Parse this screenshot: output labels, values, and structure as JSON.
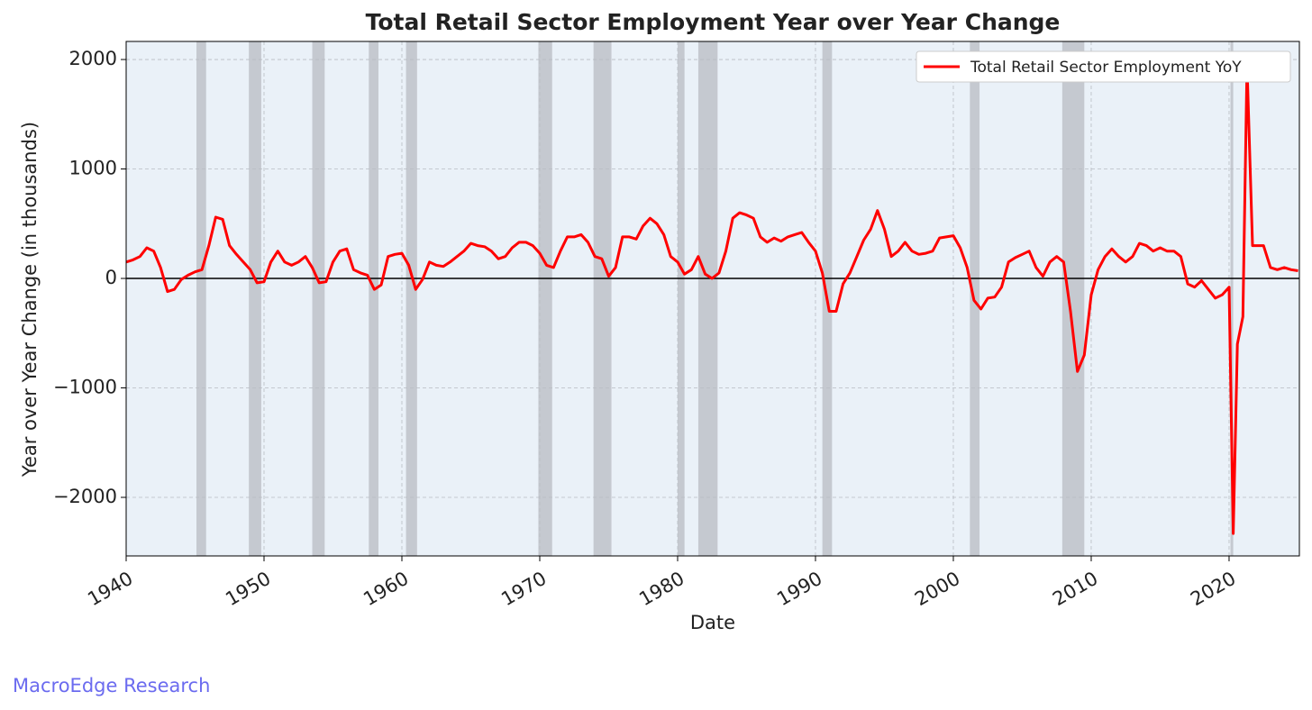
{
  "chart_data": {
    "type": "line",
    "title": "Total Retail Sector Employment Year over Year Change",
    "xlabel": "Date",
    "ylabel": "Year over Year Change (in thousands)",
    "source": "MacroEdge Research",
    "grid": true,
    "legend": "upper right",
    "xlim": [
      1940,
      2025.1
    ],
    "ylim": [
      -2535,
      2165
    ],
    "xticks": [
      1940,
      1950,
      1960,
      1970,
      1980,
      1990,
      2000,
      2010,
      2020
    ],
    "yticks": [
      {
        "value": -2000,
        "label": "−2000"
      },
      {
        "value": -1000,
        "label": "−1000"
      },
      0,
      1000,
      2000
    ],
    "shaded_regions": [
      [
        1945.1,
        1945.8
      ],
      [
        1948.9,
        1949.8
      ],
      [
        1953.5,
        1954.4
      ],
      [
        1957.6,
        1958.3
      ],
      [
        1960.3,
        1961.1
      ],
      [
        1969.9,
        1970.9
      ],
      [
        1973.9,
        1975.2
      ],
      [
        1980.0,
        1980.5
      ],
      [
        1981.5,
        1982.9
      ],
      [
        1990.5,
        1991.2
      ],
      [
        2001.2,
        2001.9
      ],
      [
        2007.9,
        2009.5
      ],
      [
        2020.1,
        2020.3
      ]
    ],
    "shade_color": "#b0b4ba",
    "series": [
      {
        "name": "Total Retail Sector Employment YoY",
        "color": "#ff0000",
        "x": [
          1940,
          1940.5,
          1941,
          1941.5,
          1942,
          1942.5,
          1943,
          1943.5,
          1944,
          1944.5,
          1945,
          1945.5,
          1946,
          1946.5,
          1947,
          1947.5,
          1948,
          1948.5,
          1949,
          1949.5,
          1950,
          1950.5,
          1951,
          1951.5,
          1952,
          1952.5,
          1953,
          1953.5,
          1954,
          1954.5,
          1955,
          1955.5,
          1956,
          1956.5,
          1957,
          1957.5,
          1958,
          1958.5,
          1959,
          1959.5,
          1960,
          1960.5,
          1961,
          1961.5,
          1962,
          1962.5,
          1963,
          1963.5,
          1964,
          1964.5,
          1965,
          1965.5,
          1966,
          1966.5,
          1967,
          1967.5,
          1968,
          1968.5,
          1969,
          1969.5,
          1970,
          1970.5,
          1971,
          1971.5,
          1972,
          1972.5,
          1973,
          1973.5,
          1974,
          1974.5,
          1975,
          1975.5,
          1976,
          1976.5,
          1977,
          1977.5,
          1978,
          1978.5,
          1979,
          1979.5,
          1980,
          1980.5,
          1981,
          1981.5,
          1982,
          1982.5,
          1983,
          1983.5,
          1984,
          1984.5,
          1985,
          1985.5,
          1986,
          1986.5,
          1987,
          1987.5,
          1988,
          1988.5,
          1989,
          1989.5,
          1990,
          1990.5,
          1991,
          1991.5,
          1992,
          1992.5,
          1993,
          1993.5,
          1994,
          1994.5,
          1995,
          1995.5,
          1996,
          1996.5,
          1997,
          1997.5,
          1998,
          1998.5,
          1999,
          1999.5,
          2000,
          2000.5,
          2001,
          2001.5,
          2002,
          2002.5,
          2003,
          2003.5,
          2004,
          2004.5,
          2005,
          2005.5,
          2006,
          2006.5,
          2007,
          2007.5,
          2008,
          2008.5,
          2009,
          2009.5,
          2010,
          2010.5,
          2011,
          2011.5,
          2012,
          2012.5,
          2013,
          2013.5,
          2014,
          2014.5,
          2015,
          2015.5,
          2016,
          2016.5,
          2017,
          2017.5,
          2018,
          2018.5,
          2019,
          2019.5,
          2020,
          2020.3,
          2020.6,
          2021,
          2021.3,
          2021.7,
          2022,
          2022.5,
          2023,
          2023.5,
          2024,
          2024.5,
          2025
        ],
        "values": [
          150,
          170,
          200,
          280,
          250,
          100,
          -120,
          -100,
          -10,
          30,
          60,
          80,
          300,
          560,
          540,
          300,
          220,
          150,
          80,
          -40,
          -30,
          150,
          250,
          150,
          120,
          150,
          200,
          100,
          -40,
          -30,
          150,
          250,
          270,
          80,
          50,
          30,
          -100,
          -60,
          200,
          220,
          230,
          120,
          -100,
          -10,
          150,
          120,
          110,
          150,
          200,
          250,
          320,
          300,
          290,
          250,
          180,
          200,
          280,
          330,
          330,
          300,
          230,
          120,
          100,
          250,
          380,
          380,
          400,
          330,
          200,
          180,
          20,
          100,
          380,
          380,
          360,
          480,
          550,
          500,
          400,
          200,
          150,
          40,
          80,
          200,
          40,
          0,
          50,
          250,
          550,
          600,
          580,
          550,
          380,
          330,
          370,
          340,
          380,
          400,
          420,
          330,
          250,
          50,
          -300,
          -300,
          -50,
          50,
          200,
          350,
          450,
          620,
          450,
          200,
          250,
          330,
          250,
          220,
          230,
          250,
          370,
          380,
          390,
          280,
          100,
          -200,
          -280,
          -180,
          -170,
          -80,
          150,
          190,
          220,
          250,
          100,
          20,
          150,
          200,
          150,
          -300,
          -850,
          -700,
          -150,
          80,
          200,
          270,
          200,
          150,
          200,
          320,
          300,
          250,
          280,
          250,
          250,
          200,
          -50,
          -80,
          -20,
          -100,
          -180,
          -150,
          -80,
          -2330,
          -600,
          -350,
          1950,
          300,
          300,
          300,
          100,
          80,
          100,
          80,
          70
        ]
      }
    ]
  }
}
